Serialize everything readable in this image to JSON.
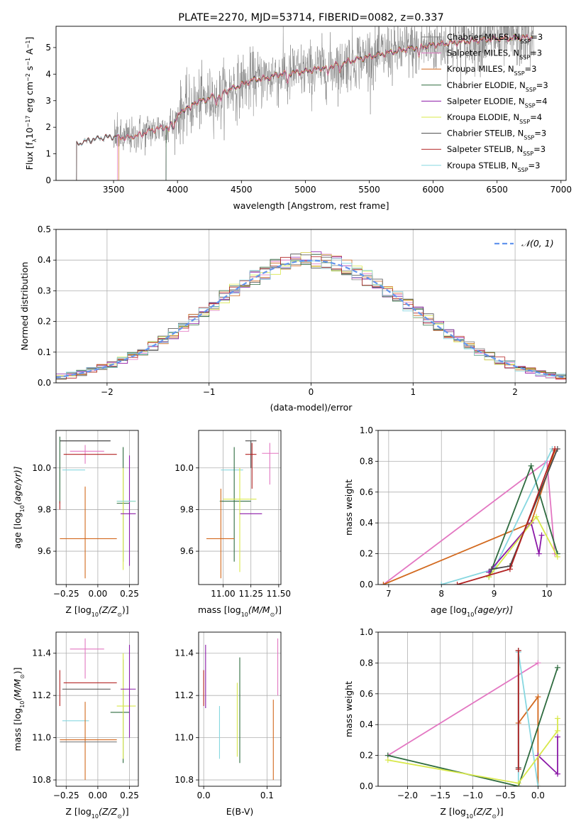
{
  "colors": {
    "chabrier_miles": "#808080",
    "salpeter_miles": "#e377c2",
    "kroupa_miles": "#d2691e",
    "chabrier_elodie": "#2e6b3f",
    "salpeter_elodie": "#8b1aa8",
    "kroupa_elodie": "#d8e84a",
    "chabrier_stelib": "#4a4a4a",
    "salpeter_stelib": "#b22222",
    "kroupa_stelib": "#87d7e0",
    "normal_curve": "#6495ed",
    "grid": "#b0b0b0"
  },
  "chart_data": [
    {
      "id": "spectrum",
      "type": "line",
      "title": "PLATE=2270, MJD=53714, FIBERID=0082, z=0.337",
      "xlabel": "wavelength [Angstrom, rest frame]",
      "ylabel": "Flux [f",
      "ylabel_parts": [
        "Flux [f",
        "λ",
        "10",
        "−17",
        " erg cm",
        "−2",
        " s",
        "−1",
        " A",
        "−1",
        "]"
      ],
      "xlim": [
        3050,
        7040
      ],
      "ylim": [
        0,
        5.8
      ],
      "xticks": [
        3500,
        4000,
        4500,
        5000,
        5500,
        6000,
        6500,
        7000
      ],
      "xtick_labels": [
        "3500",
        "4000",
        "4500",
        "5000",
        "5500",
        "6000",
        "6500",
        "7000"
      ],
      "yticks": [
        0,
        1,
        2,
        3,
        4,
        5
      ],
      "ytick_labels": [
        "0",
        "1",
        "2",
        "3",
        "4",
        "5"
      ],
      "grid": false,
      "legend_position": "right",
      "legend": [
        {
          "text": "Chabrier MILES, N",
          "n": "3",
          "color_key": "chabrier_miles"
        },
        {
          "text": "Salpeter MILES, N",
          "n": "3",
          "color_key": "salpeter_miles"
        },
        {
          "text": "Kroupa MILES, N",
          "n": "3",
          "color_key": "kroupa_miles"
        },
        {
          "text": "Chabrier ELODIE, N",
          "n": "3",
          "color_key": "chabrier_elodie"
        },
        {
          "text": "Salpeter ELODIE, N",
          "n": "4",
          "color_key": "salpeter_elodie"
        },
        {
          "text": "Kroupa ELODIE, N",
          "n": "4",
          "color_key": "kroupa_elodie"
        },
        {
          "text": "Chabrier STELIB, N",
          "n": "3",
          "color_key": "chabrier_stelib"
        },
        {
          "text": "Salpeter STELIB, N",
          "n": "3",
          "color_key": "salpeter_stelib"
        },
        {
          "text": "Kroupa STELIB, N",
          "n": "3",
          "color_key": "kroupa_stelib"
        }
      ],
      "legend_sub": "SSP",
      "continuum": {
        "x": [
          3200,
          3300,
          3400,
          3500,
          3600,
          3700,
          3800,
          3900,
          4000,
          4100,
          4200,
          4300,
          4400,
          4500,
          4600,
          4700,
          4800,
          4900,
          5000,
          5200,
          5400,
          5600,
          5800,
          6000,
          6200,
          6400,
          6600,
          6800,
          7000
        ],
        "y": [
          1.35,
          1.5,
          1.6,
          1.65,
          1.6,
          1.7,
          1.9,
          2.0,
          2.4,
          2.9,
          3.0,
          3.2,
          3.4,
          3.6,
          3.8,
          3.85,
          4.0,
          4.05,
          4.1,
          4.3,
          4.55,
          4.75,
          4.95,
          5.1,
          5.2,
          5.3,
          5.35,
          5.4,
          5.45
        ]
      },
      "data_x_range": [
        3210,
        6790
      ],
      "model_start_x": {
        "chabrier_miles": 3210,
        "salpeter_miles": 3530,
        "kroupa_miles": 3540,
        "chabrier_elodie": 3910,
        "salpeter_elodie": 3910,
        "kroupa_elodie": 3910,
        "chabrier_stelib": 3210,
        "salpeter_stelib": 3210,
        "kroupa_stelib": 3210
      }
    },
    {
      "id": "residuals",
      "type": "histogram",
      "xlabel": "(data-model)/error",
      "ylabel": "Normed distribution",
      "xlim": [
        -2.5,
        2.5
      ],
      "ylim": [
        0,
        0.5
      ],
      "xticks": [
        -2,
        -1,
        0,
        1,
        2
      ],
      "xtick_labels": [
        "−2",
        "−1",
        "0",
        "1",
        "2"
      ],
      "yticks": [
        0,
        0.1,
        0.2,
        0.3,
        0.4,
        0.5
      ],
      "ytick_labels": [
        "0.0",
        "0.1",
        "0.2",
        "0.3",
        "0.4",
        "0.5"
      ],
      "grid": true,
      "legend": "𝒩(0, 1)",
      "legend_position": "top-right",
      "bin_width": 0.1
    },
    {
      "id": "age_vs_Z",
      "type": "errorbar",
      "xlabel": "Z [log",
      "xlabel_parts": [
        "Z [log",
        "10",
        "(Z/Z",
        "⊙",
        ")]"
      ],
      "ylabel_parts": [
        "age  [log",
        "10",
        "(age/yr)]"
      ],
      "xlim": [
        -0.33,
        0.32
      ],
      "ylim": [
        9.44,
        10.18
      ],
      "xticks": [
        -0.25,
        0.0,
        0.25
      ],
      "xtick_labels": [
        "−0.25",
        "0.00",
        "0.25"
      ],
      "yticks": [
        9.6,
        9.8,
        10.0
      ],
      "ytick_labels": [
        "9.6",
        "9.8",
        "10.0"
      ],
      "grid": true,
      "points": [
        {
          "c": "chabrier_miles",
          "x": -0.1,
          "y": 10.13,
          "xlo": -0.3,
          "xhi": 0.1,
          "ylo": 10.13,
          "yhi": 10.13
        },
        {
          "c": "chabrier_stelib",
          "x": -0.1,
          "y": 10.13,
          "xlo": -0.3,
          "xhi": 0.1,
          "ylo": 10.13,
          "yhi": 10.13
        },
        {
          "c": "salpeter_miles",
          "x": -0.1,
          "y": 10.08,
          "xlo": -0.22,
          "xhi": 0.05,
          "ylo": 10.02,
          "yhi": 10.11
        },
        {
          "c": "salpeter_stelib",
          "x": -0.1,
          "y": 10.065,
          "xlo": -0.27,
          "xhi": 0.15,
          "ylo": 10.065,
          "yhi": 10.065
        },
        {
          "c": "kroupa_stelib",
          "x": -0.2,
          "y": 9.99,
          "xlo": -0.28,
          "xhi": -0.1,
          "ylo": 9.99,
          "yhi": 9.99
        },
        {
          "c": "chabrier_elodie",
          "x": -0.3,
          "y": 10.0,
          "xlo": -0.3,
          "xhi": -0.3,
          "ylo": 9.83,
          "yhi": 10.15
        },
        {
          "c": "salpeter_stelib",
          "x": -0.3,
          "y": 9.82,
          "xlo": -0.3,
          "xhi": -0.3,
          "ylo": 9.8,
          "yhi": 9.84
        },
        {
          "c": "kroupa_miles",
          "x": -0.1,
          "y": 9.66,
          "xlo": -0.3,
          "xhi": 0.15,
          "ylo": 9.47,
          "yhi": 9.91
        },
        {
          "c": "chabrier_elodie",
          "x": 0.2,
          "y": 9.83,
          "xlo": 0.15,
          "xhi": 0.25,
          "ylo": 9.55,
          "yhi": 10.1
        },
        {
          "c": "kroupa_elodie",
          "x": 0.2,
          "y": 9.84,
          "xlo": 0.15,
          "xhi": 0.3,
          "ylo": 9.51,
          "yhi": 10.0
        },
        {
          "c": "salpeter_elodie",
          "x": 0.25,
          "y": 9.78,
          "xlo": 0.18,
          "xhi": 0.3,
          "ylo": 9.53,
          "yhi": 10.06
        },
        {
          "c": "kroupa_stelib",
          "x": 0.2,
          "y": 9.84,
          "xlo": 0.15,
          "xhi": 0.3,
          "ylo": 9.84,
          "yhi": 9.84
        }
      ]
    },
    {
      "id": "age_vs_mass",
      "type": "errorbar",
      "xlabel_parts": [
        "mass [log",
        "10",
        "(M/M",
        "⊙",
        ")]"
      ],
      "xlim": [
        10.78,
        11.52
      ],
      "ylim": [
        9.44,
        10.18
      ],
      "xticks": [
        11.0,
        11.25,
        11.5
      ],
      "xtick_labels": [
        "11.00",
        "11.25",
        "11.50"
      ],
      "yticks": [
        9.6,
        9.8,
        10.0
      ],
      "ytick_labels": [
        "9.6",
        "9.8",
        "10.0"
      ],
      "grid": true,
      "points": [
        {
          "c": "chabrier_stelib",
          "x": 11.25,
          "y": 10.13,
          "xlo": 11.2,
          "xhi": 11.3,
          "ylo": 10.0,
          "yhi": 10.13
        },
        {
          "c": "salpeter_miles",
          "x": 11.42,
          "y": 10.07,
          "xlo": 11.35,
          "xhi": 11.5,
          "ylo": 9.92,
          "yhi": 10.12
        },
        {
          "c": "salpeter_stelib",
          "x": 11.26,
          "y": 10.065,
          "xlo": 11.2,
          "xhi": 11.3,
          "ylo": 9.9,
          "yhi": 10.12
        },
        {
          "c": "kroupa_stelib",
          "x": 11.08,
          "y": 9.99,
          "xlo": 10.98,
          "xhi": 11.18,
          "ylo": 9.99,
          "yhi": 9.99
        },
        {
          "c": "chabrier_elodie",
          "x": 11.1,
          "y": 9.84,
          "xlo": 10.97,
          "xhi": 11.25,
          "ylo": 9.55,
          "yhi": 10.1
        },
        {
          "c": "kroupa_elodie",
          "x": 11.15,
          "y": 9.85,
          "xlo": 11.0,
          "xhi": 11.3,
          "ylo": 9.5,
          "yhi": 10.0
        },
        {
          "c": "salpeter_elodie",
          "x": 11.23,
          "y": 9.78,
          "xlo": 11.15,
          "xhi": 11.35,
          "ylo": 9.78,
          "yhi": 9.78
        },
        {
          "c": "kroupa_miles",
          "x": 10.98,
          "y": 9.66,
          "xlo": 10.85,
          "xhi": 11.1,
          "ylo": 9.47,
          "yhi": 9.9
        }
      ]
    },
    {
      "id": "massweight_vs_age",
      "type": "line",
      "xlabel_parts": [
        "age  [log",
        "10",
        "(age/yr)]"
      ],
      "ylabel": "mass weight",
      "xlim": [
        6.8,
        10.35
      ],
      "ylim": [
        0,
        1
      ],
      "xticks": [
        7,
        8,
        9,
        10
      ],
      "xtick_labels": [
        "7",
        "8",
        "9",
        "10"
      ],
      "yticks": [
        0,
        0.2,
        0.4,
        0.6,
        0.8,
        1.0
      ],
      "ytick_labels": [
        "0.0",
        "0.2",
        "0.4",
        "0.6",
        "0.8",
        "1.0"
      ],
      "grid": true,
      "series": [
        {
          "c": "salpeter_miles",
          "x": [
            6.9,
            10.0,
            10.15
          ],
          "y": [
            0.0,
            0.8,
            0.2
          ]
        },
        {
          "c": "kroupa_miles",
          "x": [
            6.9,
            9.7,
            10.15
          ],
          "y": [
            0.0,
            0.4,
            0.87
          ]
        },
        {
          "c": "kroupa_stelib",
          "x": [
            8.0,
            9.0,
            10.1
          ],
          "y": [
            0.0,
            0.1,
            0.88
          ]
        },
        {
          "c": "chabrier_elodie",
          "x": [
            8.9,
            9.7,
            10.2
          ],
          "y": [
            0.05,
            0.77,
            0.2
          ]
        },
        {
          "c": "salpeter_elodie",
          "x": [
            8.9,
            9.7,
            9.85,
            9.9
          ],
          "y": [
            0.08,
            0.4,
            0.2,
            0.32
          ]
        },
        {
          "c": "kroupa_elodie",
          "x": [
            8.9,
            9.8,
            10.2
          ],
          "y": [
            0.05,
            0.44,
            0.18
          ]
        },
        {
          "c": "chabrier_stelib",
          "x": [
            8.95,
            9.3,
            10.2
          ],
          "y": [
            0.1,
            0.12,
            0.88
          ]
        },
        {
          "c": "salpeter_stelib",
          "x": [
            8.3,
            9.3,
            10.15
          ],
          "y": [
            0.0,
            0.1,
            0.88
          ]
        }
      ]
    },
    {
      "id": "mass_vs_Z",
      "type": "errorbar",
      "xlabel_parts": [
        "Z [log",
        "10",
        "(Z/Z",
        "⊙",
        ")]"
      ],
      "ylabel_parts": [
        "mass [log",
        "10",
        "(M/M",
        "⊙",
        ")]"
      ],
      "xlim": [
        -0.33,
        0.32
      ],
      "ylim": [
        10.77,
        11.5
      ],
      "xticks": [
        -0.25,
        0.0,
        0.25
      ],
      "xtick_labels": [
        "−0.25",
        "0.00",
        "0.25"
      ],
      "yticks": [
        10.8,
        11.0,
        11.2,
        11.4
      ],
      "ytick_labels": [
        "10.8",
        "11.0",
        "11.2",
        "11.4"
      ],
      "grid": true,
      "points": [
        {
          "c": "salpeter_miles",
          "x": -0.1,
          "y": 11.42,
          "xlo": -0.22,
          "xhi": 0.05,
          "ylo": 11.28,
          "yhi": 11.47
        },
        {
          "c": "salpeter_stelib",
          "x": -0.1,
          "y": 11.26,
          "xlo": -0.27,
          "xhi": 0.15,
          "ylo": 11.26,
          "yhi": 11.26
        },
        {
          "c": "chabrier_stelib",
          "x": -0.1,
          "y": 11.23,
          "xlo": -0.28,
          "xhi": 0.1,
          "ylo": 11.23,
          "yhi": 11.23
        },
        {
          "c": "salpeter_stelib",
          "x": -0.3,
          "y": 11.25,
          "xlo": -0.3,
          "xhi": -0.3,
          "ylo": 11.15,
          "yhi": 11.32
        },
        {
          "c": "kroupa_stelib",
          "x": -0.2,
          "y": 11.08,
          "xlo": -0.28,
          "xhi": -0.07,
          "ylo": 11.08,
          "yhi": 11.08
        },
        {
          "c": "kroupa_miles",
          "x": -0.1,
          "y": 10.99,
          "xlo": -0.3,
          "xhi": 0.15,
          "ylo": 10.8,
          "yhi": 11.17
        },
        {
          "c": "chabrier_miles",
          "x": -0.1,
          "y": 10.98,
          "xlo": -0.3,
          "xhi": 0.15,
          "ylo": 10.98,
          "yhi": 10.98
        },
        {
          "c": "chabrier_elodie",
          "x": 0.2,
          "y": 11.12,
          "xlo": 0.1,
          "xhi": 0.25,
          "ylo": 10.88,
          "yhi": 11.37
        },
        {
          "c": "kroupa_elodie",
          "x": 0.2,
          "y": 11.15,
          "xlo": 0.15,
          "xhi": 0.3,
          "ylo": 10.9,
          "yhi": 11.4
        },
        {
          "c": "salpeter_elodie",
          "x": 0.25,
          "y": 11.23,
          "xlo": 0.18,
          "xhi": 0.3,
          "ylo": 11.0,
          "yhi": 11.44
        }
      ]
    },
    {
      "id": "mass_vs_ebv",
      "type": "errorbar",
      "xlabel": "E(B-V)",
      "xlim": [
        -0.008,
        0.122
      ],
      "ylim": [
        10.77,
        11.5
      ],
      "xticks": [
        0.0,
        0.1
      ],
      "xtick_labels": [
        "0.0",
        "0.1"
      ],
      "yticks": [
        10.8,
        11.0,
        11.2,
        11.4
      ],
      "ytick_labels": [
        "10.8",
        "11.0",
        "11.2",
        "11.4"
      ],
      "grid": true,
      "points": [
        {
          "c": "salpeter_elodie",
          "x": 0.003,
          "y": 11.3,
          "xlo": 0.003,
          "xhi": 0.003,
          "ylo": 11.14,
          "yhi": 11.44
        },
        {
          "c": "salpeter_stelib",
          "x": 0.0,
          "y": 11.25,
          "xlo": 0.0,
          "xhi": 0.0,
          "ylo": 11.15,
          "yhi": 11.32
        },
        {
          "c": "kroupa_stelib",
          "x": 0.025,
          "y": 11.0,
          "xlo": 0.025,
          "xhi": 0.025,
          "ylo": 10.9,
          "yhi": 11.15
        },
        {
          "c": "kroupa_elodie",
          "x": 0.053,
          "y": 11.1,
          "xlo": 0.053,
          "xhi": 0.053,
          "ylo": 10.91,
          "yhi": 11.26
        },
        {
          "c": "chabrier_elodie",
          "x": 0.057,
          "y": 11.12,
          "xlo": 0.057,
          "xhi": 0.057,
          "ylo": 10.88,
          "yhi": 11.38
        },
        {
          "c": "salpeter_miles",
          "x": 0.117,
          "y": 11.35,
          "xlo": 0.117,
          "xhi": 0.117,
          "ylo": 11.2,
          "yhi": 11.47
        },
        {
          "c": "kroupa_miles",
          "x": 0.11,
          "y": 10.98,
          "xlo": 0.11,
          "xhi": 0.11,
          "ylo": 10.8,
          "yhi": 11.18
        }
      ]
    },
    {
      "id": "massweight_vs_Z",
      "type": "line",
      "xlabel_parts": [
        "Z [log",
        "10",
        "(Z/Z",
        "⊙",
        ")]"
      ],
      "ylabel": "mass weight",
      "xlim": [
        -2.45,
        0.42
      ],
      "ylim": [
        0,
        1
      ],
      "xticks": [
        -2.0,
        -1.5,
        -1.0,
        -0.5,
        0.0
      ],
      "xtick_labels": [
        "−2.0",
        "−1.5",
        "−1.0",
        "−0.5",
        "0.0"
      ],
      "yticks": [
        0,
        0.2,
        0.4,
        0.6,
        0.8,
        1.0
      ],
      "ytick_labels": [
        "0.0",
        "0.2",
        "0.4",
        "0.6",
        "0.8",
        "1.0"
      ],
      "grid": true,
      "series": [
        {
          "c": "salpeter_miles",
          "x": [
            -2.3,
            0.0
          ],
          "y": [
            0.2,
            0.8
          ]
        },
        {
          "c": "kroupa_miles",
          "x": [
            -0.3,
            0.0,
            0.0
          ],
          "y": [
            0.41,
            0.58,
            0.0
          ]
        },
        {
          "c": "kroupa_stelib",
          "x": [
            -0.3,
            -0.3,
            0.0
          ],
          "y": [
            0.0,
            0.87,
            0.0
          ]
        },
        {
          "c": "chabrier_elodie",
          "x": [
            -2.3,
            -0.3,
            0.3
          ],
          "y": [
            0.2,
            0.0,
            0.77
          ]
        },
        {
          "c": "salpeter_elodie",
          "x": [
            0.0,
            0.3,
            0.3
          ],
          "y": [
            0.2,
            0.08,
            0.32
          ]
        },
        {
          "c": "kroupa_elodie",
          "x": [
            -2.3,
            -0.3,
            0.3,
            0.3
          ],
          "y": [
            0.17,
            0.02,
            0.36,
            0.44
          ]
        },
        {
          "c": "chabrier_stelib",
          "x": [
            -0.3,
            -0.3
          ],
          "y": [
            0.12,
            0.88
          ]
        },
        {
          "c": "salpeter_stelib",
          "x": [
            -0.3,
            -0.3
          ],
          "y": [
            0.11,
            0.88
          ]
        }
      ]
    }
  ]
}
